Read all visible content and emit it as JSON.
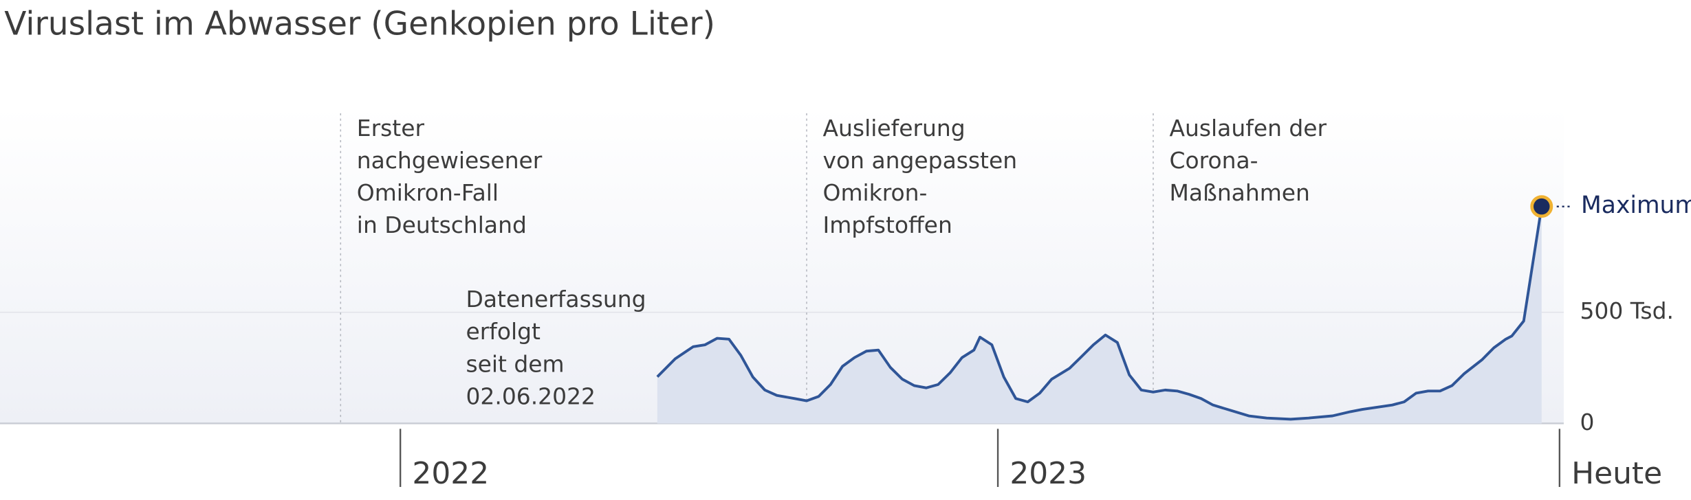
{
  "chart_data": {
    "type": "area",
    "title": "Viruslast im Abwasser (Genkopien pro Liter)",
    "x": [
      2022.43,
      2022.46,
      2022.49,
      2022.51,
      2022.53,
      2022.55,
      2022.57,
      2022.59,
      2022.61,
      2022.63,
      2022.66,
      2022.68,
      2022.7,
      2022.72,
      2022.74,
      2022.76,
      2022.78,
      2022.8,
      2022.82,
      2022.84,
      2022.86,
      2022.88,
      2022.9,
      2022.92,
      2022.94,
      2022.96,
      2022.97,
      2022.99,
      2023.01,
      2023.03,
      2023.05,
      2023.07,
      2023.09,
      2023.12,
      2023.14,
      2023.16,
      2023.18,
      2023.2,
      2023.22,
      2023.24,
      2023.26,
      2023.28,
      2023.3,
      2023.32,
      2023.34,
      2023.36,
      2023.39,
      2023.42,
      2023.45,
      2023.49,
      2023.52,
      2023.56,
      2023.59,
      2023.61,
      2023.66,
      2023.68,
      2023.7,
      2023.72,
      2023.74,
      2023.76,
      2023.78,
      2023.81,
      2023.83,
      2023.85,
      2023.86,
      2023.88,
      2023.89,
      2023.91
    ],
    "series": [
      {
        "name": "Viruslast",
        "color": "#2f5597",
        "fill": "#dce2ef",
        "values": [
          210000,
          291000,
          345000,
          354000,
          383000,
          379000,
          306000,
          209000,
          150000,
          126000,
          112000,
          102000,
          121000,
          175000,
          257000,
          296000,
          325000,
          330000,
          252000,
          199000,
          170000,
          160000,
          175000,
          228000,
          296000,
          330000,
          388000,
          354000,
          209000,
          112000,
          97000,
          136000,
          199000,
          248000,
          301000,
          354000,
          398000,
          364000,
          218000,
          150000,
          141000,
          150000,
          146000,
          131000,
          112000,
          83000,
          58000,
          34000,
          24000,
          19000,
          24000,
          34000,
          53000,
          63000,
          83000,
          97000,
          136000,
          146000,
          146000,
          170000,
          223000,
          286000,
          340000,
          379000,
          393000,
          461000,
          631000,
          976000
        ]
      }
    ],
    "xlim": [
      2021.33,
      2024.16
    ],
    "xticks": [
      2022,
      2023,
      {
        "value": 2023.94,
        "label": "Heute"
      }
    ],
    "ylim": [
      0,
      1420000
    ],
    "yticks": [
      0,
      {
        "value": 500000,
        "label": "500 Tsd."
      }
    ],
    "grid": true,
    "max_label": "Maximum",
    "note": {
      "lines": [
        "Datenerfassung",
        "erfolgt",
        "seit dem",
        "02.06.2022"
      ]
    },
    "annotations": [
      {
        "x": 2021.9,
        "lines": [
          "Erster",
          "nachgewiesener",
          "Omikron-Fall",
          "in Deutschland"
        ]
      },
      {
        "x": 2022.68,
        "lines": [
          "Auslieferung",
          "von angepassten",
          "Omikron-",
          "Impfstoffen"
        ]
      },
      {
        "x": 2023.26,
        "lines": [
          "Auslaufen der",
          "Corona-",
          "Maßnahmen"
        ]
      }
    ]
  }
}
